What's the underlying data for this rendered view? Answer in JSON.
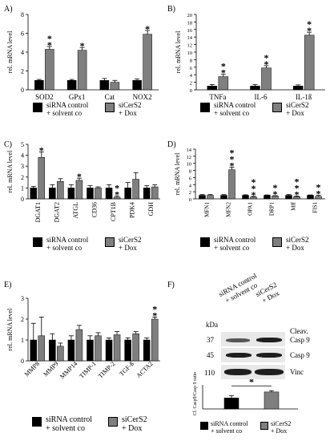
{
  "panel_letters": {
    "A": "A)",
    "B": "B)",
    "C": "C)",
    "D": "D)",
    "E": "E)",
    "F": "F)"
  },
  "colors": {
    "control": "#000000",
    "cers2": "#7f7f7f"
  },
  "legend": {
    "control_line1": "siRNA control",
    "control_line2": "+ solvent co",
    "cers2_line1": "siCerS2",
    "cers2_line2": "+ Dox"
  },
  "western": {
    "kda_label": "kDa",
    "lane1_line1": "siRNA control",
    "lane1_line2": "+ solvent co",
    "lane2_line1": "siCerS2",
    "lane2_line2": "+ Dox",
    "rows": [
      {
        "kda": "37",
        "label_line1": "Cleav.",
        "label_line2": "Casp 9"
      },
      {
        "kda": "45",
        "label_line1": "Casp 9",
        "label_line2": ""
      },
      {
        "kda": "110",
        "label_line1": "Vinc",
        "label_line2": ""
      }
    ]
  },
  "chart_data": [
    {
      "id": "A",
      "type": "bar",
      "ylabel": "rel. mRNA level",
      "ylim": [
        0,
        8
      ],
      "yticks": [
        0,
        2,
        4,
        6,
        8
      ],
      "categories": [
        "SOD2",
        "GPx1",
        "Cat",
        "NOX2"
      ],
      "series": [
        {
          "name": "siRNA control + solvent co",
          "values": [
            1.0,
            1.0,
            1.0,
            1.0
          ],
          "errors": [
            0.1,
            0.1,
            0.2,
            0.15
          ]
        },
        {
          "name": "siCerS2 + Dox",
          "values": [
            4.3,
            4.2,
            0.8,
            5.9
          ],
          "errors": [
            0.3,
            0.3,
            0.2,
            0.4
          ]
        }
      ],
      "significance": [
        "**",
        "*",
        "",
        "*"
      ]
    },
    {
      "id": "B",
      "type": "bar",
      "ylabel": "rel. mRNA level",
      "ylim": [
        0,
        20
      ],
      "yticks": [
        0,
        2,
        4,
        6,
        8,
        10,
        12,
        14,
        16,
        18,
        20
      ],
      "categories": [
        "TNFa",
        "IL-6",
        "IL-1ß"
      ],
      "series": [
        {
          "name": "siRNA control + solvent co",
          "values": [
            1.0,
            1.0,
            1.0
          ],
          "errors": [
            0.4,
            0.4,
            0.3
          ]
        },
        {
          "name": "siCerS2 + Dox",
          "values": [
            3.5,
            5.8,
            14.5
          ],
          "errors": [
            0.6,
            0.6,
            0.8
          ]
        }
      ],
      "significance": [
        "**",
        "**",
        "**"
      ]
    },
    {
      "id": "C",
      "type": "bar",
      "ylabel": "rel. mRNA level",
      "ylim": [
        0,
        5
      ],
      "yticks": [
        0,
        1,
        2,
        3,
        4,
        5
      ],
      "categories": [
        "DGAT1",
        "DGAT2",
        "ATGL",
        "CD36",
        "CPT1B",
        "PDK4",
        "GDH"
      ],
      "series": [
        {
          "name": "siRNA control + solvent co",
          "values": [
            1.0,
            1.0,
            1.0,
            1.0,
            1.0,
            1.0,
            1.0
          ],
          "errors": [
            0.15,
            0.3,
            0.3,
            0.2,
            0.3,
            0.5,
            0.2
          ]
        },
        {
          "name": "siCerS2 + Dox",
          "values": [
            3.8,
            1.6,
            1.7,
            1.0,
            0.15,
            1.8,
            1.1
          ],
          "errors": [
            0.5,
            0.25,
            0.2,
            0.1,
            0.1,
            0.6,
            0.2
          ]
        }
      ],
      "significance": [
        "*",
        "",
        "*",
        "",
        "**",
        "",
        ""
      ]
    },
    {
      "id": "D",
      "type": "bar",
      "ylabel": "rel. mRNA level",
      "ylim": [
        0,
        14
      ],
      "yticks": [
        0,
        2,
        4,
        6,
        8,
        10,
        12,
        14
      ],
      "categories": [
        "MFN1",
        "MFN2",
        "OPA1",
        "DRP1",
        "Mff",
        "FIS1"
      ],
      "series": [
        {
          "name": "siRNA control + solvent co",
          "values": [
            1.0,
            1.0,
            1.0,
            1.0,
            1.0,
            1.0
          ],
          "errors": [
            0.2,
            0.2,
            0.15,
            0.1,
            0.2,
            0.1
          ]
        },
        {
          "name": "siCerS2 + Dox",
          "values": [
            1.0,
            8.2,
            0.5,
            0.8,
            0.6,
            0.7
          ],
          "errors": [
            0.2,
            0.7,
            0.2,
            0.1,
            0.2,
            0.3
          ]
        }
      ],
      "significance": [
        "",
        "***",
        "***",
        "**",
        "***",
        "**"
      ]
    },
    {
      "id": "E",
      "type": "bar",
      "ylabel": "rel. mRNA level",
      "ylim": [
        0,
        3
      ],
      "yticks": [
        0,
        1,
        2,
        3
      ],
      "categories": [
        "MMP8",
        "MMP9",
        "MMP14",
        "TIMP-1",
        "TIMP-2",
        "TGF-ß",
        "ACTA2"
      ],
      "series": [
        {
          "name": "siRNA control + solvent co",
          "values": [
            1.0,
            1.0,
            1.0,
            1.0,
            1.0,
            1.0,
            1.0
          ],
          "errors": [
            0.8,
            0.3,
            0.2,
            0.2,
            0.1,
            0.1,
            0.1
          ]
        },
        {
          "name": "siCerS2 + Dox",
          "values": [
            1.2,
            0.7,
            1.5,
            1.2,
            1.25,
            1.3,
            2.0
          ],
          "errors": [
            0.9,
            0.15,
            0.2,
            0.15,
            0.15,
            0.1,
            0.1
          ]
        }
      ],
      "significance": [
        "",
        "",
        "",
        "",
        "",
        "",
        "**"
      ]
    },
    {
      "id": "F",
      "type": "bar",
      "ylabel": "Cl. Casp9/Casp 9 ratio",
      "ylim": [
        0,
        2.2
      ],
      "yticks": [],
      "categories": [
        "siRNA control + solvent co",
        "siCerS2 + Dox"
      ],
      "values": [
        1.0,
        1.55
      ],
      "errors": [
        0.2,
        0.12
      ],
      "significance": [
        "*"
      ]
    }
  ]
}
